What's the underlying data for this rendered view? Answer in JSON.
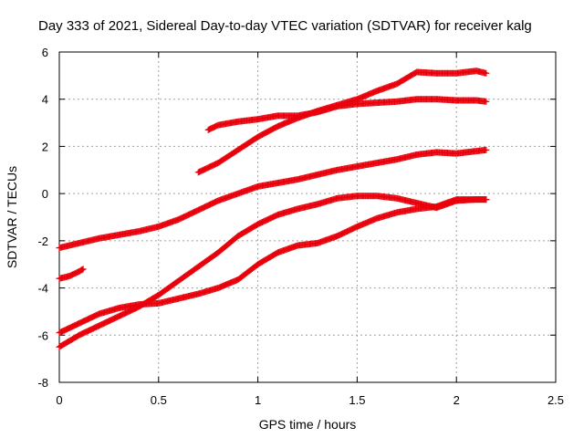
{
  "chart_data": {
    "type": "scatter",
    "title": "Day 333 of 2021, Sidereal Day-to-day VTEC variation (SDTVAR) for receiver kalg",
    "xlabel": "GPS time / hours",
    "ylabel": "SDTVAR / TECUs",
    "xlim": [
      0,
      2.5
    ],
    "ylim": [
      -8,
      6
    ],
    "xticks": [
      0,
      0.5,
      1,
      1.5,
      2,
      2.5
    ],
    "xtick_labels": [
      "0",
      "0.5",
      "1",
      "1.5",
      "2",
      "2.5"
    ],
    "yticks": [
      -8,
      -6,
      -4,
      -2,
      0,
      2,
      4,
      6
    ],
    "ytick_labels": [
      "-8",
      "-6",
      "-4",
      "-2",
      "0",
      "2",
      "4",
      "6"
    ],
    "grid": true,
    "marker": "+",
    "marker_color": "#e8000b",
    "series": [
      {
        "x": [
          0.0,
          0.1,
          0.2,
          0.3,
          0.4,
          0.5,
          0.6,
          0.7,
          0.8,
          0.9,
          1.0,
          1.1,
          1.2,
          1.3,
          1.4,
          1.5,
          1.6,
          1.7,
          1.8,
          1.9,
          2.0,
          2.1,
          2.15
        ],
        "y": [
          -2.3,
          -2.1,
          -1.9,
          -1.75,
          -1.6,
          -1.4,
          -1.1,
          -0.7,
          -0.3,
          0.0,
          0.3,
          0.45,
          0.6,
          0.8,
          1.0,
          1.15,
          1.3,
          1.45,
          1.65,
          1.75,
          1.7,
          1.8,
          1.85
        ]
      },
      {
        "x": [
          0.0,
          0.05,
          0.1,
          0.12
        ],
        "y": [
          -3.6,
          -3.5,
          -3.3,
          -3.2
        ]
      },
      {
        "x": [
          0.0,
          0.1,
          0.2,
          0.3,
          0.4,
          0.5,
          0.6,
          0.7,
          0.8,
          0.9,
          1.0,
          1.1,
          1.2,
          1.3,
          1.4,
          1.5,
          1.6,
          1.7,
          1.8,
          1.9,
          2.0,
          2.1,
          2.15
        ],
        "y": [
          -6.5,
          -6.0,
          -5.6,
          -5.2,
          -4.8,
          -4.3,
          -3.7,
          -3.1,
          -2.5,
          -1.8,
          -1.3,
          -0.9,
          -0.65,
          -0.45,
          -0.2,
          -0.1,
          -0.1,
          -0.2,
          -0.4,
          -0.6,
          -0.3,
          -0.25,
          -0.25
        ]
      },
      {
        "x": [
          0.0,
          0.1,
          0.2,
          0.3,
          0.4,
          0.5,
          0.6,
          0.7,
          0.8,
          0.9,
          1.0,
          1.1,
          1.2,
          1.3,
          1.4,
          1.5,
          1.6,
          1.7,
          1.8,
          1.9,
          2.0,
          2.1,
          2.15
        ],
        "y": [
          -5.9,
          -5.5,
          -5.1,
          -4.85,
          -4.7,
          -4.65,
          -4.45,
          -4.25,
          -4.0,
          -3.65,
          -3.0,
          -2.5,
          -2.2,
          -2.1,
          -1.8,
          -1.4,
          -1.05,
          -0.8,
          -0.65,
          -0.55,
          -0.25,
          -0.25,
          -0.25
        ]
      },
      {
        "x": [
          0.7,
          0.8,
          0.9,
          1.0,
          1.1,
          1.2,
          1.3,
          1.4,
          1.5,
          1.6,
          1.7,
          1.8,
          1.9,
          2.0,
          2.1,
          2.15
        ],
        "y": [
          0.9,
          1.3,
          1.85,
          2.4,
          2.85,
          3.2,
          3.5,
          3.75,
          4.0,
          4.35,
          4.65,
          5.15,
          5.1,
          5.1,
          5.2,
          5.1
        ]
      },
      {
        "x": [
          0.75,
          0.8,
          0.9,
          1.0,
          1.1,
          1.2,
          1.3,
          1.4,
          1.5,
          1.6,
          1.7,
          1.8,
          1.9,
          2.0,
          2.1,
          2.15
        ],
        "y": [
          2.7,
          2.9,
          3.05,
          3.15,
          3.3,
          3.3,
          3.45,
          3.7,
          3.8,
          3.85,
          3.9,
          4.0,
          4.0,
          3.95,
          3.95,
          3.9
        ]
      }
    ]
  }
}
